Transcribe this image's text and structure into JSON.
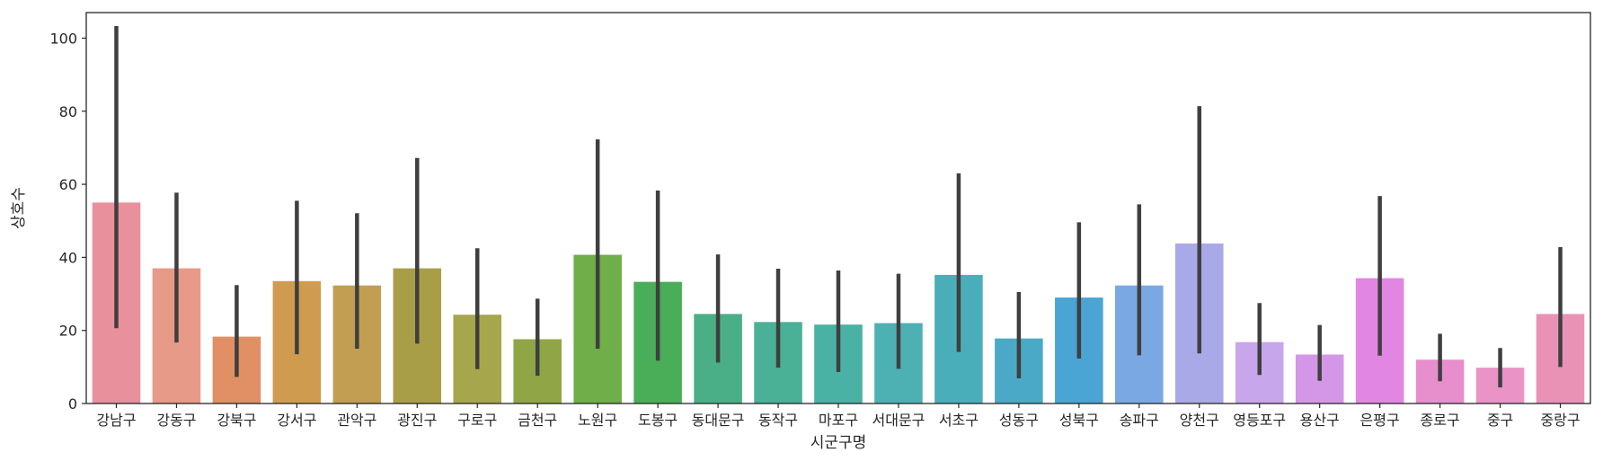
{
  "chart_data": {
    "type": "bar",
    "xlabel": "시군구명",
    "ylabel": "상호수",
    "ylim": [
      0,
      107
    ],
    "yticks": [
      0,
      20,
      40,
      60,
      80,
      100
    ],
    "grid": false,
    "legend": "none",
    "errorbar_color": "#3f3f3f",
    "categories": [
      "강남구",
      "강동구",
      "강북구",
      "강서구",
      "관악구",
      "광진구",
      "구로구",
      "금천구",
      "노원구",
      "도봉구",
      "동대문구",
      "동작구",
      "마포구",
      "서대문구",
      "서초구",
      "성동구",
      "성북구",
      "송파구",
      "양천구",
      "영등포구",
      "용산구",
      "은평구",
      "종로구",
      "중구",
      "중랑구"
    ],
    "values": [
      55,
      37,
      18.3,
      33.5,
      32.3,
      37,
      24.3,
      17.6,
      40.7,
      33.3,
      24.5,
      22.3,
      21.6,
      22,
      35.2,
      17.8,
      29,
      32.3,
      43.8,
      16.8,
      13.4,
      34.3,
      12,
      9.8,
      24.5
    ],
    "err_low": [
      20.6,
      16.7,
      7.3,
      13.5,
      15,
      16.4,
      9.4,
      7.6,
      15,
      11.7,
      11.2,
      9.8,
      8.6,
      9.5,
      14.1,
      6.9,
      12.3,
      13.2,
      13.7,
      7.8,
      6.2,
      13.1,
      6.1,
      4.4,
      10
    ],
    "err_high": [
      103.3,
      57.7,
      32.4,
      55.5,
      52.1,
      67.2,
      42.5,
      28.7,
      72.3,
      58.3,
      40.8,
      36.9,
      36.4,
      35.5,
      63,
      30.5,
      49.6,
      54.5,
      81.4,
      27.5,
      21.5,
      56.8,
      19.1,
      15.2,
      42.8
    ],
    "colors": [
      "#e8909c",
      "#e79a87",
      "#e09064",
      "#cf9c4f",
      "#c19e52",
      "#a99e48",
      "#a6a64c",
      "#90a646",
      "#6fae48",
      "#4aad57",
      "#4aaf86",
      "#4ab096",
      "#4ab2a5",
      "#4db1b3",
      "#4aaeba",
      "#4aa9c6",
      "#4aa4d4",
      "#7aa8e2",
      "#a9a9e8",
      "#c8a6ec",
      "#d497e8",
      "#e286e4",
      "#e78ecd",
      "#e993c6",
      "#e992b6"
    ]
  }
}
